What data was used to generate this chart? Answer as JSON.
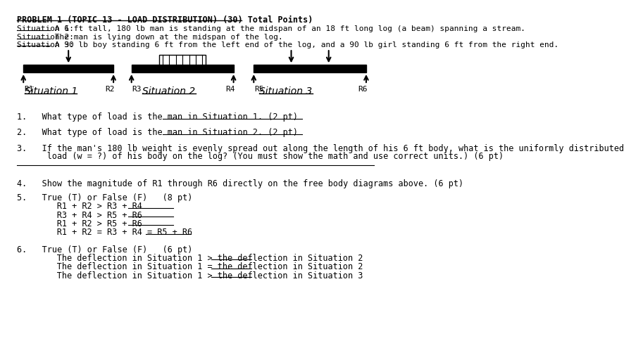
{
  "bg_color": "#ffffff",
  "title_line": "PROBLEM 1 (TOPIC 13 - LOAD DISTRIBUTION) (30) Total Points)",
  "sit_labels": [
    "Situation 1:",
    "Situation 2:",
    "Situation 3:"
  ],
  "sit_rest": [
    " A 6 ft tall, 180 lb man is standing at the midspan of an 18 ft long log (a beam) spanning a stream.",
    " The man is lying down at the midspan of the log.",
    " A 90 lb boy standing 6 ft from the left end of the log, and a 90 lb girl standing 6 ft from the right end."
  ],
  "q1": "1.   What type of load is the man in Situation 1. (2 pt)",
  "q2": "2.   What type of load is the man in Situation 2. (2 pt)",
  "q3": "3.   If the man's 180 lb weight is evenly spread out along the length of his 6 ft body, what is the uniformly distributed",
  "q3b": "      load (w = ?) of his body on the log? (You must show the math and use correct units.) (6 pt)",
  "q4": "4.   Show the magnitude of R1 through R6 directly on the free body diagrams above. (6 pt)",
  "q5_header": "5.   True (T) or False (F)   (8 pt)",
  "q5a": "      R1 + R2 > R3 + R4",
  "q5b": "      R3 + R4 > R5 + R6",
  "q5c": "      R1 + R2 > R5 + R6",
  "q5d": "      R1 + R2 = R3 + R4 = R5 + R6",
  "q6_header": "6.   True (T) or False (F)   (6 pt)",
  "q6a": "      The deflection in Situation 1 > the deflection in Situation 2",
  "q6b": "      The deflection in Situation 1 = the deflection in Situation 2",
  "q6c": "      The deflection in Situation 1 > the deflection in Situation 3"
}
